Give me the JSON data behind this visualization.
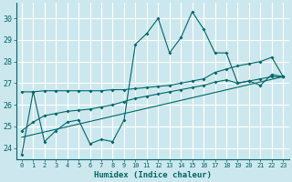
{
  "xlabel": "Humidex (Indice chaleur)",
  "bg_color": "#cce8ee",
  "grid_color": "#ffffff",
  "line_color": "#006666",
  "x_ticks": [
    0,
    1,
    2,
    3,
    4,
    5,
    6,
    7,
    8,
    9,
    10,
    11,
    12,
    13,
    14,
    15,
    16,
    17,
    18,
    19,
    20,
    21,
    22,
    23
  ],
  "y_ticks": [
    24,
    25,
    26,
    27,
    28,
    29,
    30
  ],
  "ylim": [
    23.5,
    30.7
  ],
  "xlim": [
    -0.5,
    23.5
  ],
  "series1_x": [
    0,
    1,
    2,
    3,
    4,
    5,
    6,
    7,
    8,
    9,
    10,
    11,
    12,
    13,
    14,
    15,
    16,
    17,
    18,
    19,
    20,
    21,
    22,
    23
  ],
  "series1_y": [
    23.7,
    26.6,
    24.3,
    24.8,
    25.2,
    25.3,
    24.2,
    24.4,
    24.3,
    25.3,
    28.8,
    29.3,
    30.0,
    28.4,
    29.1,
    30.3,
    29.5,
    28.4,
    28.4,
    27.0,
    27.1,
    26.9,
    27.4,
    27.3
  ],
  "series2_x": [
    0,
    1,
    2,
    3,
    4,
    5,
    6,
    7,
    8,
    9,
    10,
    11,
    12,
    13,
    14,
    15,
    16,
    17,
    18,
    19,
    20,
    21,
    22,
    23
  ],
  "series2_y": [
    26.6,
    26.6,
    26.65,
    26.65,
    26.65,
    26.65,
    26.65,
    26.65,
    26.7,
    26.7,
    26.75,
    26.8,
    26.85,
    26.9,
    27.0,
    27.1,
    27.2,
    27.5,
    27.65,
    27.8,
    27.9,
    28.0,
    28.2,
    27.3
  ],
  "series3_x": [
    0,
    1,
    2,
    3,
    4,
    5,
    6,
    7,
    8,
    9,
    10,
    11,
    12,
    13,
    14,
    15,
    16,
    17,
    18,
    19,
    20,
    21,
    22,
    23
  ],
  "series3_y": [
    24.8,
    25.2,
    25.5,
    25.6,
    25.7,
    25.75,
    25.8,
    25.9,
    26.0,
    26.15,
    26.3,
    26.4,
    26.5,
    26.6,
    26.7,
    26.8,
    26.9,
    27.05,
    27.15,
    27.0,
    27.1,
    27.2,
    27.3,
    27.3
  ],
  "series4_x": [
    0,
    23
  ],
  "series4_y": [
    24.5,
    27.3
  ]
}
